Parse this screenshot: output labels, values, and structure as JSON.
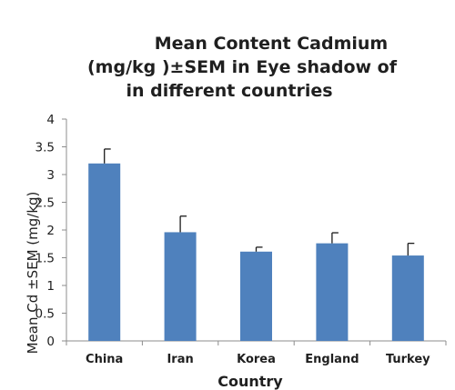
{
  "chart_data": {
    "type": "bar",
    "title_lines": [
      "Mean Content Cadmium",
      "(mg/kg )±SEM  in Eye shadow of",
      "in different countries"
    ],
    "xlabel": "Country",
    "ylabel": "Mean Cd ±SEM (mg/kg)",
    "categories": [
      "China",
      "Iran",
      "Korea",
      "England",
      "Turkey"
    ],
    "values": [
      3.2,
      1.96,
      1.61,
      1.76,
      1.54
    ],
    "errors": [
      0.26,
      0.29,
      0.08,
      0.19,
      0.22
    ],
    "ylim": [
      0,
      4
    ],
    "yticks": [
      "0",
      "0.5",
      "1",
      "1.5",
      "2",
      "2.5",
      "3",
      "3.5",
      "4"
    ],
    "grid": false,
    "bar_color": "#4f81bd"
  }
}
